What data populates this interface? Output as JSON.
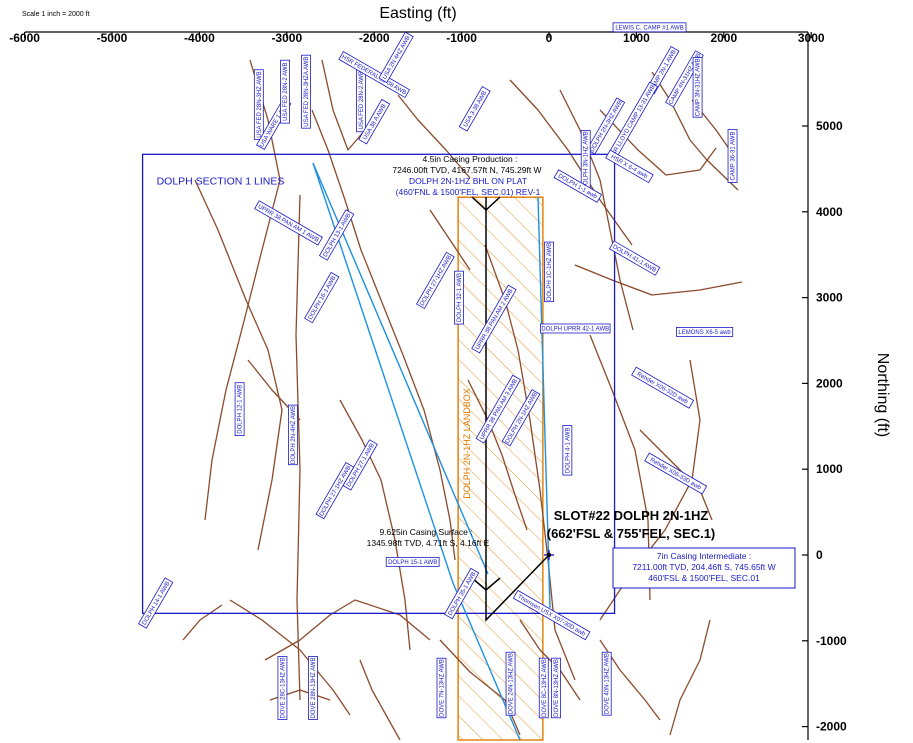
{
  "header": {
    "scale_note": "Scale 1 inch = 2000 ft",
    "x_axis_title": "Easting (ft)",
    "y_axis_title": "Northing (ft)"
  },
  "axes": {
    "x_ticks": [
      -6000,
      -5000,
      -4000,
      -3000,
      -2000,
      -1000,
      0,
      1000,
      2000,
      3000
    ],
    "y_ticks": [
      5000,
      4000,
      3000,
      2000,
      1000,
      0,
      -1000,
      -2000
    ],
    "xlim": [
      -6000,
      3000
    ],
    "ylim": [
      -2100,
      6300
    ]
  },
  "section": {
    "label": "DOLPH SECTION 1 LINES",
    "x_range": [
      -4650,
      750
    ],
    "y_range": [
      -680,
      4670
    ]
  },
  "lease_box": {
    "label": "DOLPH 2N-1HZ LANDBOX",
    "x_range": [
      -1040,
      -70
    ],
    "y_range": [
      -2200,
      4170
    ]
  },
  "slot": {
    "line1": "SLOT#22 DOLPH 2N-1HZ",
    "line2": "(662'FSL & 755'FEL, SEC.1)",
    "x": 0,
    "y": 0
  },
  "annotations": {
    "production": {
      "line1": "4.5in Casing Production :",
      "line2": "7246.00ft TVD, 4167.57ft N, 745.29ft W",
      "line3": "DOLPH 2N-1HZ BHL ON PLAT",
      "line4": "(460'FNL & 1500'FEL, SEC.01) REV-1"
    },
    "surface": {
      "line1": "9.625in Casing Surface :",
      "line2": "1345.98ft TVD, 4.71ft S, 4.16ft E"
    },
    "intermediate": {
      "line1": "7in Casing Intermediate :",
      "line2": "7211.00ft TVD, 204.46ft S, 745.65ft W",
      "line3": "460'FSL & 1500'FEL, SEC.01"
    }
  },
  "well_labels": [
    {
      "text": "USA FED 28N-3HZ AWB",
      "x": -3320,
      "y": 5250,
      "rot": -90
    },
    {
      "text": "USA WARE 1 AWB",
      "x": -3150,
      "y": 5020,
      "rot": -60
    },
    {
      "text": "USA FED 28N-2 AWB",
      "x": -3020,
      "y": 5400,
      "rot": -90
    },
    {
      "text": "USA FED 28N-3HZA AWB",
      "x": -2780,
      "y": 5400,
      "rot": -90
    },
    {
      "text": "USA FED 28N-2 AWB",
      "x": -2150,
      "y": 5300,
      "rot": -90
    },
    {
      "text": "USA 38 A AWB",
      "x": -2000,
      "y": 5050,
      "rot": -60
    },
    {
      "text": "HSR FEDERAL 15-38 AWB",
      "x": -2000,
      "y": 5600,
      "rot": 30
    },
    {
      "text": "USA 2N 4HZ AWB",
      "x": -1750,
      "y": 5800,
      "rot": -60
    },
    {
      "text": "USA 3-38 AWB",
      "x": -850,
      "y": 5200,
      "rot": -60
    },
    {
      "text": "LEWIS C. CAMP #1 AWB",
      "x": 1150,
      "y": 6150,
      "rot": 0
    },
    {
      "text": "CAMP 2N-1 AWB",
      "x": 1300,
      "y": 5650,
      "rot": -60
    },
    {
      "text": "CAMP 4N-31HZ AWB",
      "x": 1550,
      "y": 5550,
      "rot": -60
    },
    {
      "text": "CAMP 3N-31HZ AWB",
      "x": 1700,
      "y": 5450,
      "rot": -90
    },
    {
      "text": "HSR LLOYD CAMP 13-31 AWB",
      "x": 950,
      "y": 5050,
      "rot": -60
    },
    {
      "text": "DOLPH 2N-3HZ AWB",
      "x": 650,
      "y": 5000,
      "rot": -60
    },
    {
      "text": "DOLPH 3N-1HZ AWB",
      "x": 420,
      "y": 4600,
      "rot": -90
    },
    {
      "text": "HSR X 6-4 awb",
      "x": 920,
      "y": 4530,
      "rot": 30
    },
    {
      "text": "CAMP 36-31 AWB",
      "x": 2100,
      "y": 4650,
      "rot": -90
    },
    {
      "text": "DOLPH 1-1 awb",
      "x": 330,
      "y": 4300,
      "rot": 30
    },
    {
      "text": "UPRR 38 PAN AM 1 AWB",
      "x": -2980,
      "y": 3870,
      "rot": 30
    },
    {
      "text": "DOLPH 13-1 AWB",
      "x": -2430,
      "y": 3730,
      "rot": -60
    },
    {
      "text": "DOLPH 16-1 AWB",
      "x": -2600,
      "y": 3000,
      "rot": -60
    },
    {
      "text": "DOLPH 27-1HZ AWB",
      "x": -1300,
      "y": 3200,
      "rot": -60
    },
    {
      "text": "DOLPH 32-1 AWB",
      "x": -1030,
      "y": 3000,
      "rot": -90
    },
    {
      "text": "DOLPH 1C-1HZ AWB",
      "x": 0,
      "y": 3300,
      "rot": -90
    },
    {
      "text": "DOLPH 41-1 AWB",
      "x": 980,
      "y": 3460,
      "rot": 30
    },
    {
      "text": "UPRR 38 PAN AM 2 AWB",
      "x": -630,
      "y": 2750,
      "rot": -60
    },
    {
      "text": "DOLPH UPRR 42-1 AWB",
      "x": 300,
      "y": 2640,
      "rot": 0
    },
    {
      "text": "LEMONS X6-5 awb",
      "x": 1780,
      "y": 2600,
      "rot": 0
    },
    {
      "text": "UPRR 38 PAN AM 3 AWB",
      "x": -580,
      "y": 1700,
      "rot": -60
    },
    {
      "text": "DOLPH 2N-1HZ AWB",
      "x": -320,
      "y": 1600,
      "rot": -60
    },
    {
      "text": "Rehder X06-32D awb",
      "x": 1300,
      "y": 1950,
      "rot": 30
    },
    {
      "text": "DOLPH 12-1 AWB",
      "x": -3540,
      "y": 1700,
      "rot": -90
    },
    {
      "text": "DOLPH 2N-4HZ AWB",
      "x": -2930,
      "y": 1400,
      "rot": -90
    },
    {
      "text": "DOLPH 4-1 AWB",
      "x": 210,
      "y": 1220,
      "rot": -90
    },
    {
      "text": "Rehder X06-33D awb",
      "x": 1450,
      "y": 950,
      "rot": 30
    },
    {
      "text": "DOLPH 27-1 AWB",
      "x": -2160,
      "y": 1050,
      "rot": -60
    },
    {
      "text": "DOLPH 27-1HZ AWB",
      "x": -2450,
      "y": 750,
      "rot": -60
    },
    {
      "text": "DOLPH 15-1 AWB",
      "x": -1560,
      "y": -80,
      "rot": 0
    },
    {
      "text": "DOLPH 35-1 AWB",
      "x": -1000,
      "y": -450,
      "rot": -60
    },
    {
      "text": "DOLPH 14-1 AWB",
      "x": -4500,
      "y": -560,
      "rot": -60
    },
    {
      "text": "Thomsen USX X07-30D awb",
      "x": 30,
      "y": -700,
      "rot": 30
    },
    {
      "text": "DOVE 28C-13HZ AWB",
      "x": -3050,
      "y": -1550,
      "rot": -90
    },
    {
      "text": "DOVE 28N-13HZ AWB",
      "x": -2700,
      "y": -1550,
      "rot": -90
    },
    {
      "text": "DOVE 7N-13HZ AWB",
      "x": -1230,
      "y": -1550,
      "rot": -90
    },
    {
      "text": "DOVE 24N-13HZ AWB",
      "x": -440,
      "y": -1500,
      "rot": -90
    },
    {
      "text": "DOVE 8C-13HZ AWB",
      "x": -60,
      "y": -1550,
      "rot": -90
    },
    {
      "text": "DOVE 8N-13HZ AWB",
      "x": 80,
      "y": -1550,
      "rot": -90
    },
    {
      "text": "DOVE 40N-13HZ AWB",
      "x": 660,
      "y": -1500,
      "rot": -90
    }
  ],
  "colors": {
    "trajectory": "#8b4a2b",
    "section": "#1a1acc",
    "planned": "#1e90e0",
    "lease": "#e07b00",
    "main_well": "#000000"
  }
}
